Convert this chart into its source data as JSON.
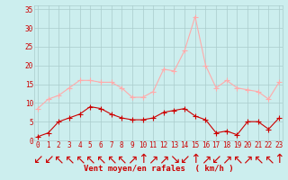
{
  "hours": [
    0,
    1,
    2,
    3,
    4,
    5,
    6,
    7,
    8,
    9,
    10,
    11,
    12,
    13,
    14,
    15,
    16,
    17,
    18,
    19,
    20,
    21,
    22,
    23
  ],
  "wind_avg": [
    1,
    2,
    5,
    6,
    7,
    9,
    8.5,
    7,
    6,
    5.5,
    5.5,
    6,
    7.5,
    8,
    8.5,
    6.5,
    5.5,
    2,
    2.5,
    1.5,
    5,
    5,
    3,
    6
  ],
  "wind_gust": [
    8.5,
    11,
    12,
    14,
    16,
    16,
    15.5,
    15.5,
    14,
    11.5,
    11.5,
    13,
    19,
    18.5,
    24,
    33,
    20,
    14,
    16,
    14,
    13.5,
    13,
    11,
    15.5
  ],
  "wind_dir_symbols": [
    "↙",
    "↙",
    "↖",
    "↖",
    "↖",
    "↖",
    "↖",
    "↖",
    "↖",
    "↗",
    "↑",
    "↗",
    "↗",
    "↘",
    "↙",
    "↑",
    "↗",
    "↙",
    "↗",
    "↖",
    "↗",
    "↖",
    "↖",
    "↑"
  ],
  "line_color_avg": "#cc0000",
  "line_color_gust": "#ffaaaa",
  "bg_color": "#cceeee",
  "grid_color": "#aacccc",
  "ylabel_ticks": [
    0,
    5,
    10,
    15,
    20,
    25,
    30,
    35
  ],
  "ylim": [
    0,
    36
  ],
  "xlim": [
    -0.3,
    23.3
  ],
  "xlabel": "Vent moyen/en rafales  ( km/h )",
  "tick_fontsize": 5.5,
  "xlabel_fontsize": 6.5,
  "marker": "+",
  "marker_size": 4,
  "line_width": 0.8
}
